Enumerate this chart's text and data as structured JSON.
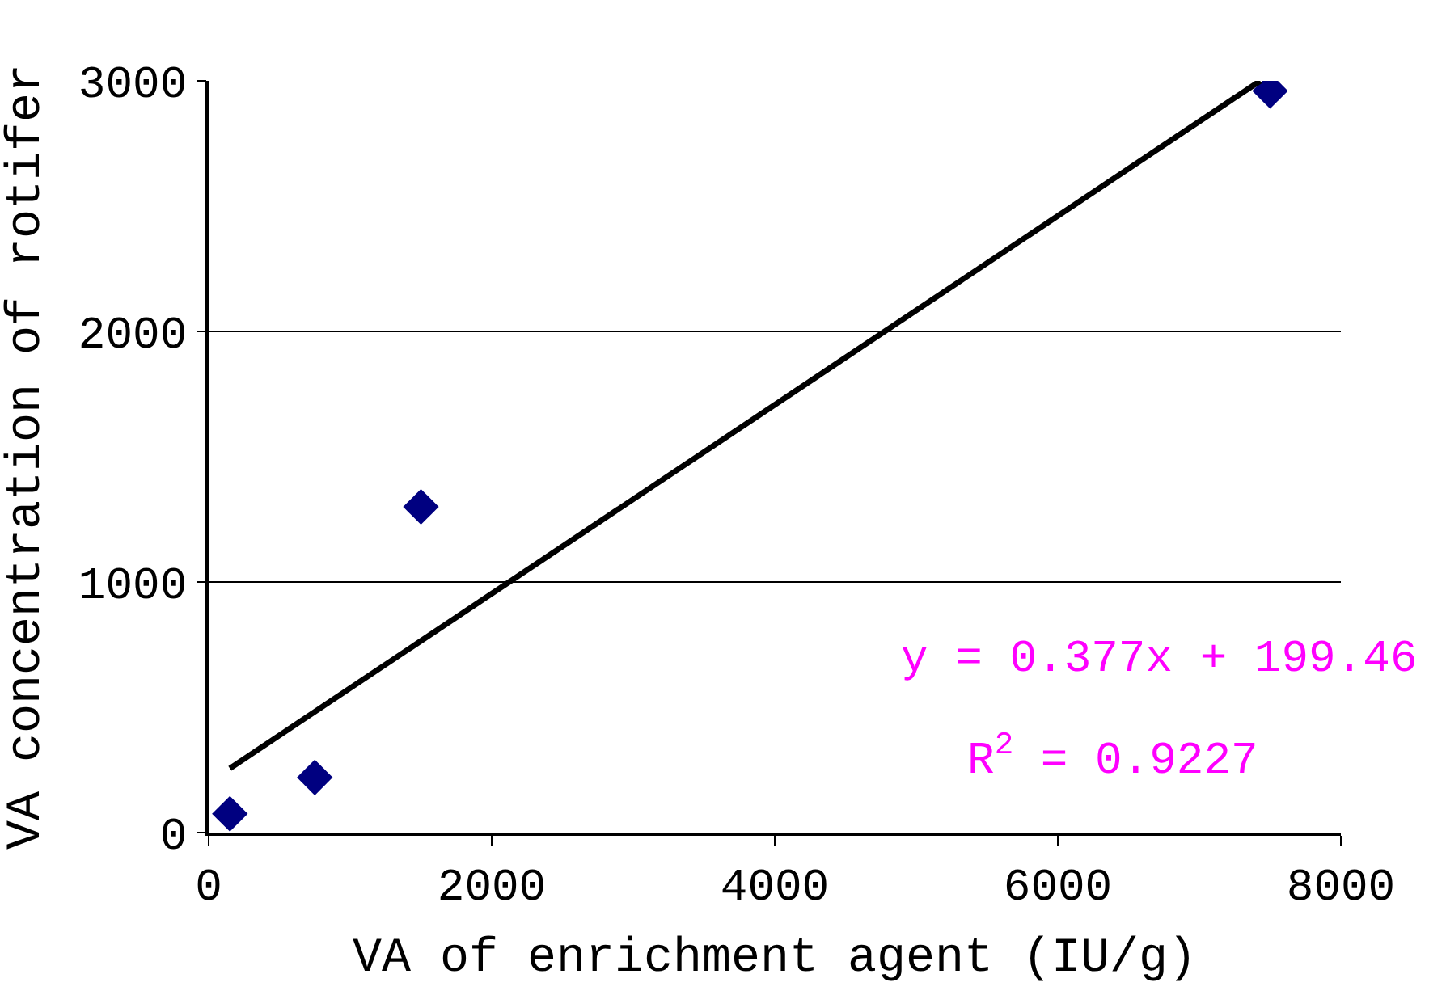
{
  "chart_data": {
    "type": "scatter",
    "xlabel": "VA of enrichment agent (IU/g)",
    "ylabel": "VA concentration of rotifer",
    "series": [
      {
        "color": "#000080",
        "marker": "diamond",
        "x": [
          150,
          750,
          1500,
          7500
        ],
        "values": [
          75,
          220,
          1300,
          2960
        ]
      },
      {
        "type": "line",
        "color": "#000000",
        "marker": "none",
        "line_style": "solid",
        "x": [
          150,
          7430
        ],
        "values": [
          256,
          3000
        ]
      }
    ],
    "xlim": [
      0,
      8000
    ],
    "xticks": [
      0,
      2000,
      4000,
      6000,
      8000
    ],
    "ylim": [
      0,
      3000
    ],
    "yticks": [
      0,
      1000,
      2000,
      3000
    ],
    "grid": "y",
    "annotations": [
      "y = 0.377x + 199.46",
      "R$^{2}$ = 0.9227"
    ]
  }
}
